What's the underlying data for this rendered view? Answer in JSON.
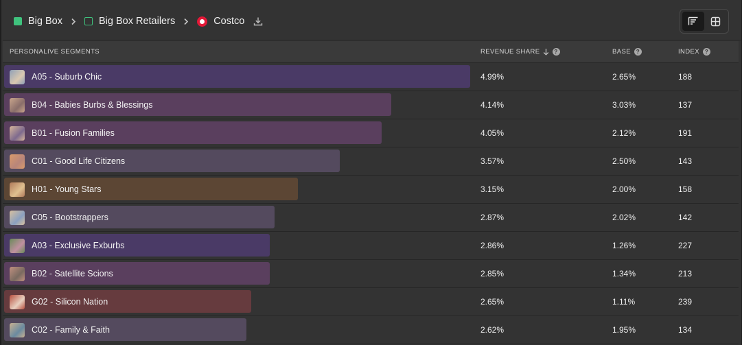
{
  "breadcrumb": {
    "items": [
      {
        "label": "Big Box",
        "marker": "filled-square"
      },
      {
        "label": "Big Box Retailers",
        "marker": "outline-square"
      },
      {
        "label": "Costco",
        "marker": "costco-logo"
      }
    ],
    "separator_icon": "chevron-right-icon",
    "download_icon": "download-icon"
  },
  "view_toggle": {
    "options": [
      {
        "icon": "bar-list-icon",
        "active": true
      },
      {
        "icon": "grid-icon",
        "active": false
      }
    ]
  },
  "table": {
    "columns": {
      "segment": "PERSONALIVE SEGMENTS",
      "revenue_share": "REVENUE SHARE",
      "base": "BASE",
      "index": "INDEX"
    },
    "sort": {
      "column": "revenue_share",
      "direction": "descending"
    },
    "rows": [
      {
        "segment": "A05 - Suburb Chic",
        "revenue_share": "4.99%",
        "base": "2.65%",
        "index": "188",
        "bar_fraction": 1.0,
        "bar_color": "#4a3a66"
      },
      {
        "segment": "B04 - Babies Burbs & Blessings",
        "revenue_share": "4.14%",
        "base": "3.03%",
        "index": "137",
        "bar_fraction": 0.83,
        "bar_color": "#5a3f5e"
      },
      {
        "segment": "B01 - Fusion Families",
        "revenue_share": "4.05%",
        "base": "2.12%",
        "index": "191",
        "bar_fraction": 0.81,
        "bar_color": "#5a3f5e"
      },
      {
        "segment": "C01 - Good Life Citizens",
        "revenue_share": "3.57%",
        "base": "2.50%",
        "index": "143",
        "bar_fraction": 0.72,
        "bar_color": "#544a5e"
      },
      {
        "segment": "H01 - Young Stars",
        "revenue_share": "3.15%",
        "base": "2.00%",
        "index": "158",
        "bar_fraction": 0.63,
        "bar_color": "#5c4634"
      },
      {
        "segment": "C05 - Bootstrappers",
        "revenue_share": "2.87%",
        "base": "2.02%",
        "index": "142",
        "bar_fraction": 0.58,
        "bar_color": "#544a5e"
      },
      {
        "segment": "A03 - Exclusive Exburbs",
        "revenue_share": "2.86%",
        "base": "1.26%",
        "index": "227",
        "bar_fraction": 0.57,
        "bar_color": "#4a3a66"
      },
      {
        "segment": "B02 - Satellite Scions",
        "revenue_share": "2.85%",
        "base": "1.34%",
        "index": "213",
        "bar_fraction": 0.57,
        "bar_color": "#5a3f5e"
      },
      {
        "segment": "G02 - Silicon Nation",
        "revenue_share": "2.65%",
        "base": "1.11%",
        "index": "239",
        "bar_fraction": 0.53,
        "bar_color": "#663b3e"
      },
      {
        "segment": "C02 - Family & Faith",
        "revenue_share": "2.62%",
        "base": "1.95%",
        "index": "134",
        "bar_fraction": 0.52,
        "bar_color": "#544a5e"
      }
    ]
  }
}
